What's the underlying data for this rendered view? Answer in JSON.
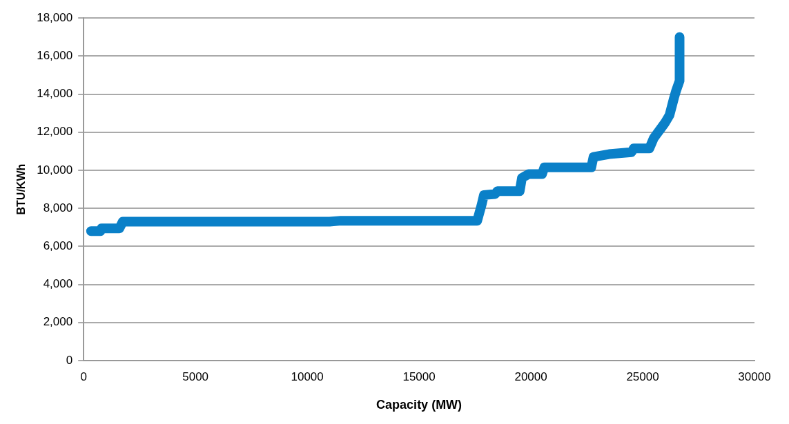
{
  "chart_data": {
    "type": "line",
    "xlabel": "Capacity (MW)",
    "ylabel": "BTU/KWh",
    "series": [
      {
        "color": "#0a80c8",
        "x": [
          330,
          750,
          800,
          1600,
          1750,
          11000,
          11500,
          17600,
          17800,
          17900,
          18400,
          18500,
          19500,
          19600,
          19900,
          20500,
          20600,
          22700,
          22800,
          23500,
          24500,
          24600,
          25300,
          25500,
          26000,
          26200,
          26400,
          26500,
          26650,
          26650
        ],
        "values": [
          6800,
          6800,
          6950,
          6950,
          7300,
          7300,
          7350,
          7350,
          8200,
          8700,
          8750,
          8900,
          8900,
          9600,
          9800,
          9800,
          10150,
          10150,
          10700,
          10850,
          10950,
          11150,
          11150,
          11700,
          12500,
          12900,
          13800,
          14200,
          14700,
          17000
        ]
      }
    ],
    "xlim": [
      0,
      30000
    ],
    "xticks": [
      {
        "value": 0,
        "label": "0"
      },
      {
        "value": 5000,
        "label": "5000"
      },
      {
        "value": 10000,
        "label": "10000"
      },
      {
        "value": 15000,
        "label": "15000"
      },
      {
        "value": 20000,
        "label": "20000"
      },
      {
        "value": 25000,
        "label": "25000"
      },
      {
        "value": 30000,
        "label": "30000"
      }
    ],
    "ylim": [
      0,
      18000
    ],
    "yticks": [
      {
        "value": 0,
        "label": "0"
      },
      {
        "value": 2000,
        "label": "2,000"
      },
      {
        "value": 4000,
        "label": "4,000"
      },
      {
        "value": 6000,
        "label": "6,000"
      },
      {
        "value": 8000,
        "label": "8,000"
      },
      {
        "value": 10000,
        "label": "10,000"
      },
      {
        "value": 12000,
        "label": "12,000"
      },
      {
        "value": 14000,
        "label": "14,000"
      },
      {
        "value": 16000,
        "label": "16,000"
      },
      {
        "value": 18000,
        "label": "18,000"
      }
    ],
    "grid": "y",
    "legend": false,
    "marker": "none",
    "line_style": "solid"
  }
}
